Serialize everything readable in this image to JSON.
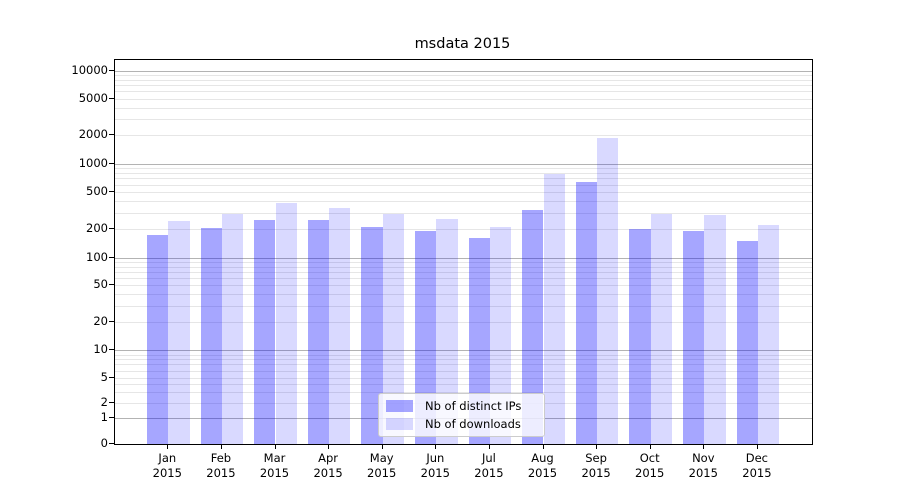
{
  "title": "msdata 2015",
  "chart_data": {
    "type": "bar",
    "title": "msdata 2015",
    "categories": [
      "Jan 2015",
      "Feb 2015",
      "Mar 2015",
      "Apr 2015",
      "May 2015",
      "Jun 2015",
      "Jul 2015",
      "Aug 2015",
      "Sep 2015",
      "Oct 2015",
      "Nov 2015",
      "Dec 2015"
    ],
    "series": [
      {
        "name": "Nb of distinct IPs",
        "color": "rgba(0,0,255,0.35)",
        "values": [
          175,
          205,
          250,
          250,
          210,
          190,
          160,
          320,
          640,
          200,
          190,
          150
        ]
      },
      {
        "name": "Nb of downloads",
        "color": "rgba(0,0,255,0.15)",
        "values": [
          245,
          290,
          380,
          335,
          295,
          255,
          210,
          770,
          1880,
          290,
          285,
          220
        ]
      }
    ],
    "xlabel": "",
    "ylabel": "",
    "yscale": "symlog",
    "yticks": [
      0,
      1,
      2,
      5,
      10,
      20,
      50,
      100,
      200,
      500,
      1000,
      2000,
      5000,
      10000
    ],
    "major_grid_values": [
      1,
      10,
      100,
      1000,
      10000
    ],
    "minor_grid_values": [
      2,
      3,
      4,
      5,
      6,
      7,
      8,
      9,
      20,
      30,
      40,
      50,
      60,
      70,
      80,
      90,
      200,
      300,
      400,
      500,
      600,
      700,
      800,
      900,
      2000,
      3000,
      4000,
      5000,
      6000,
      7000,
      8000,
      9000
    ],
    "ylim": [
      0,
      13000
    ],
    "grid": true,
    "legend_position": "lower center"
  },
  "colors": {
    "major_grid": "#b3b3b3",
    "minor_grid": "#e6e6e6",
    "axes_edge": "#000000",
    "text": "#000000"
  }
}
